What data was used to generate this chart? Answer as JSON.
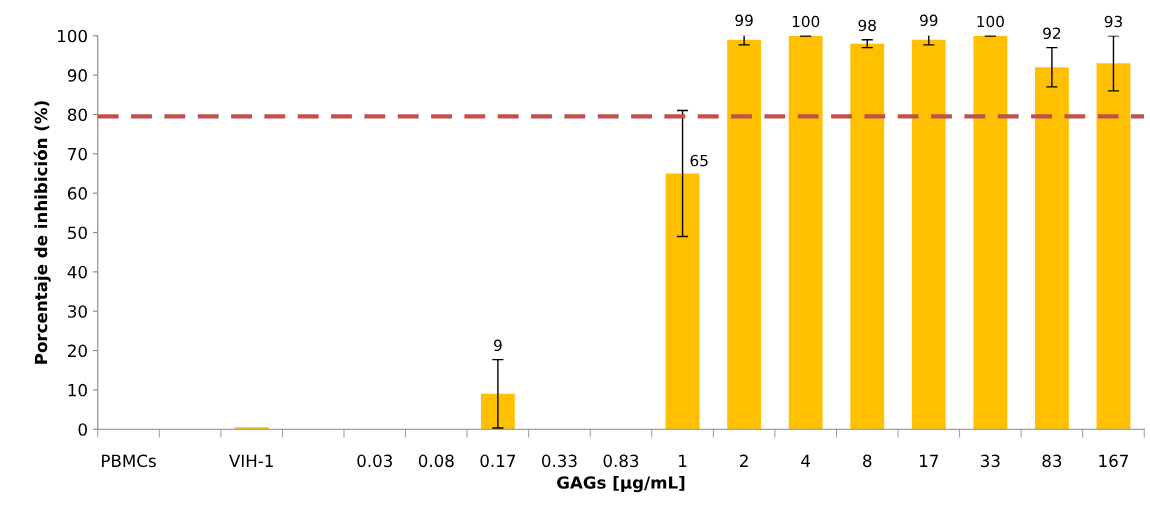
{
  "chart_data": {
    "type": "bar",
    "xlabel": "GAGs [µg/mL]",
    "ylabel": "Porcentaje de inhibición (%)",
    "categories": [
      "PBMCs",
      null,
      "VIH-1",
      null,
      "0.03",
      "0.08",
      "0.17",
      "0.33",
      "0.83",
      "1",
      "2",
      "4",
      "8",
      "17",
      "33",
      "83",
      "167"
    ],
    "values": [
      0,
      null,
      0.5,
      null,
      0,
      0,
      9,
      0,
      0,
      65,
      99,
      100,
      98,
      99,
      100,
      92,
      93
    ],
    "errors": [
      null,
      null,
      null,
      null,
      null,
      null,
      8.7,
      null,
      null,
      16,
      1.3,
      0,
      1,
      1.3,
      0,
      5,
      7
    ],
    "value_labels": [
      null,
      null,
      null,
      null,
      null,
      null,
      "9",
      null,
      null,
      "65",
      "99",
      "100",
      "98",
      "99",
      "100",
      "92",
      "93"
    ],
    "color": "#ffc000",
    "ylim": [
      0,
      100
    ],
    "yticks": [
      0,
      10,
      20,
      30,
      40,
      50,
      60,
      70,
      80,
      90,
      100
    ],
    "ref_lines": [
      {
        "axis": "y",
        "value": 79.5,
        "color": "#c0504d",
        "line_style": "dashed"
      }
    ]
  }
}
